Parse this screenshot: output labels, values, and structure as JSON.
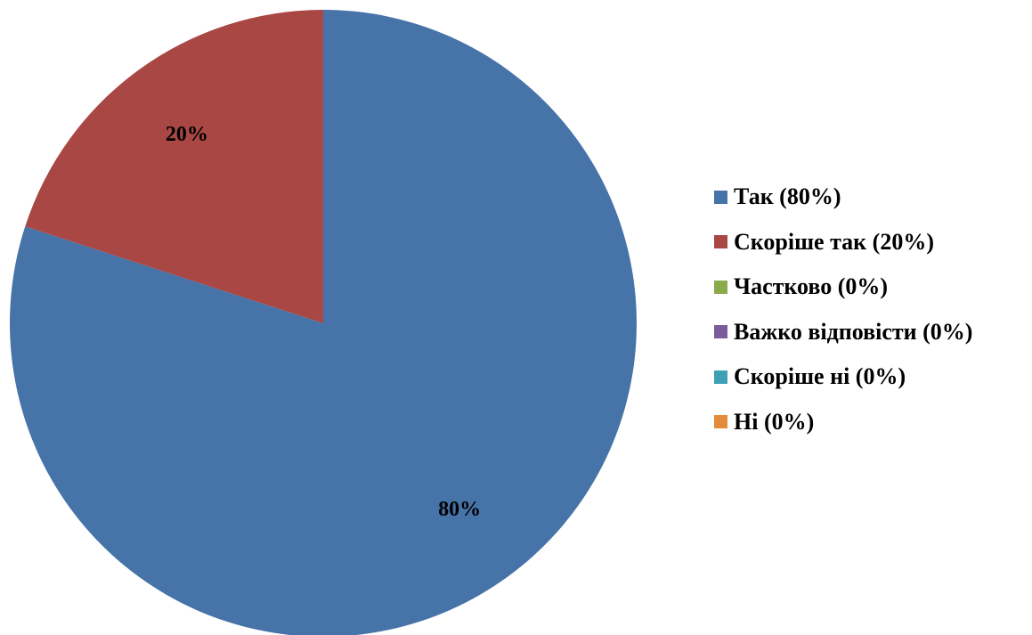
{
  "chart_data": {
    "type": "pie",
    "title": "",
    "slices": [
      {
        "label": "Так (80%)",
        "value": 80,
        "data_label": "80%",
        "color": "#4673A8"
      },
      {
        "label": "Скоріше так (20%)",
        "value": 20,
        "data_label": "20%",
        "color": "#A94745"
      },
      {
        "label": "Частково (0%)",
        "value": 0,
        "data_label": "",
        "color": "#8BAA4B"
      },
      {
        "label": "Важко відповісти (0%)",
        "value": 0,
        "data_label": "",
        "color": "#7A5C9B"
      },
      {
        "label": "Скоріше ні (0%)",
        "value": 0,
        "data_label": "",
        "color": "#3EA0B5"
      },
      {
        "label": "Ні (0%)",
        "value": 0,
        "data_label": "",
        "color": "#E38C3B"
      }
    ],
    "start_angle": "12 o'clock",
    "direction": "clockwise",
    "legend_position": "right"
  }
}
